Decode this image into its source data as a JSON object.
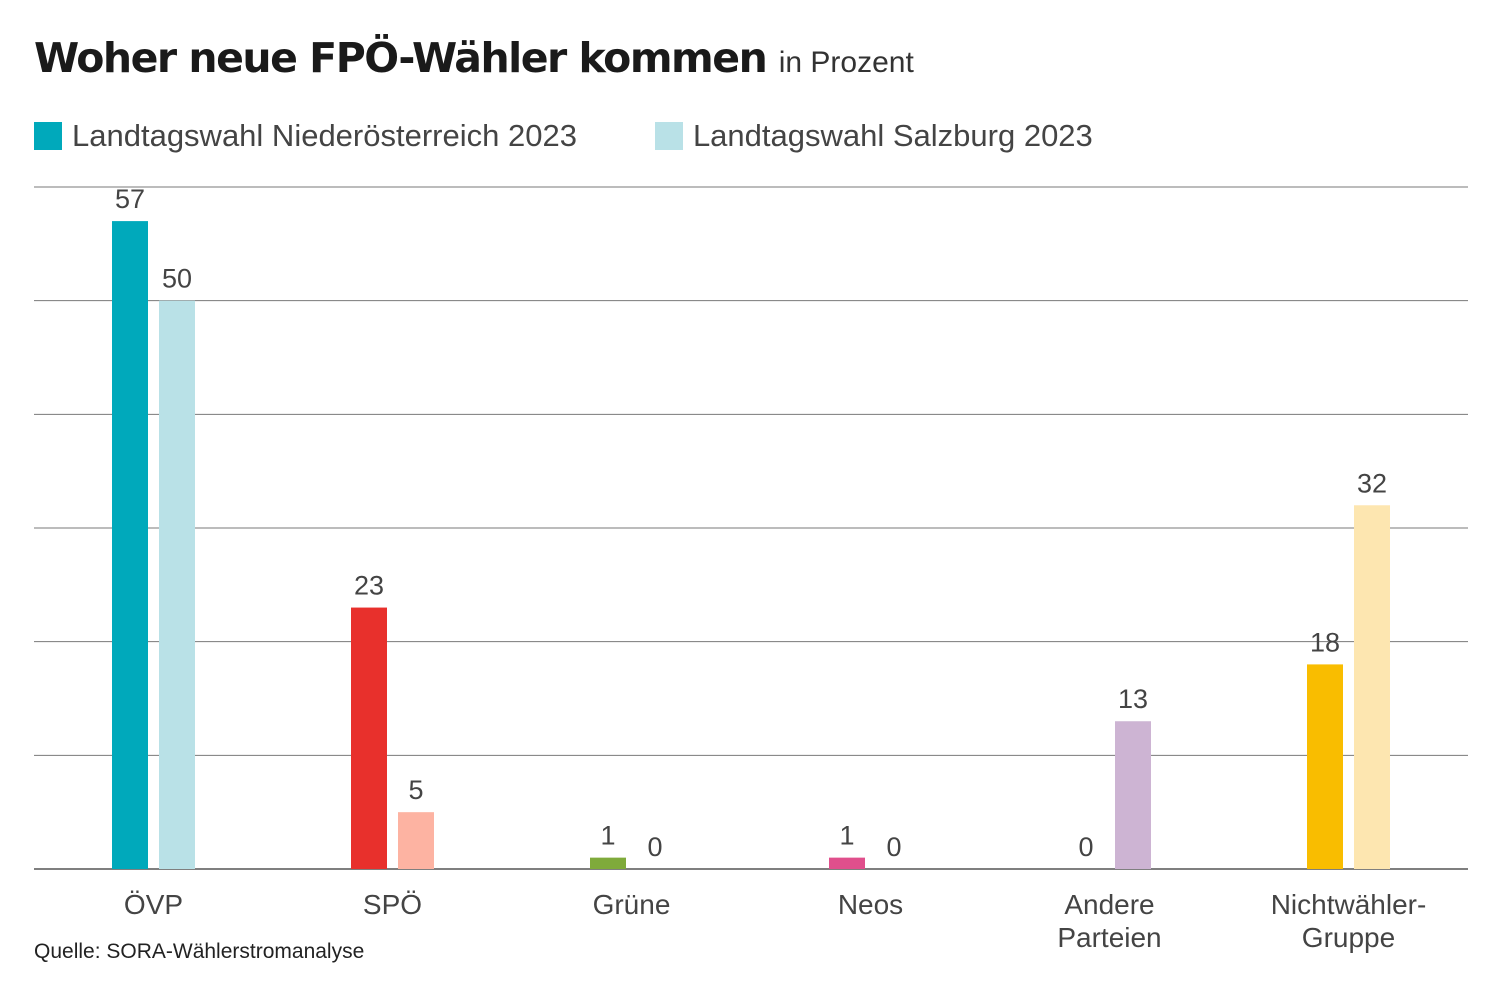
{
  "header": {
    "title": "Woher neue FPÖ-Wähler kommen",
    "subtitle": "in Prozent"
  },
  "legend": [
    {
      "label": "Landtagswahl Niederösterreich 2023",
      "color": "#00a9bb"
    },
    {
      "label": "Landtagswahl Salzburg 2023",
      "color": "#b9e1e7"
    }
  ],
  "footer": {
    "source": "Quelle: SORA-Wählerstromanalyse"
  },
  "chart_data": {
    "type": "bar",
    "categories": [
      [
        "ÖVP"
      ],
      [
        "SPÖ"
      ],
      [
        "Grüne"
      ],
      [
        "Neos"
      ],
      [
        "Andere",
        "Parteien"
      ],
      [
        "Nichtwähler-",
        "Gruppe"
      ]
    ],
    "series": [
      {
        "name": "Landtagswahl Niederösterreich 2023",
        "values": [
          57,
          23,
          1,
          1,
          0,
          18
        ]
      },
      {
        "name": "Landtagswahl Salzburg 2023",
        "values": [
          50,
          5,
          0,
          0,
          13,
          32
        ]
      }
    ],
    "bar_colors": [
      [
        "#00a9bb",
        "#b9e1e7"
      ],
      [
        "#e8302c",
        "#fdb3a2"
      ],
      [
        "#7faa3b",
        "#cfe0b3"
      ],
      [
        "#e04f8c",
        "#f5c2d6"
      ],
      [
        "#9c7db5",
        "#cdb4d3"
      ],
      [
        "#f9bd00",
        "#fde6b0"
      ]
    ],
    "ylim": [
      0,
      60
    ],
    "grid": true,
    "xlabel": "",
    "ylabel": ""
  }
}
